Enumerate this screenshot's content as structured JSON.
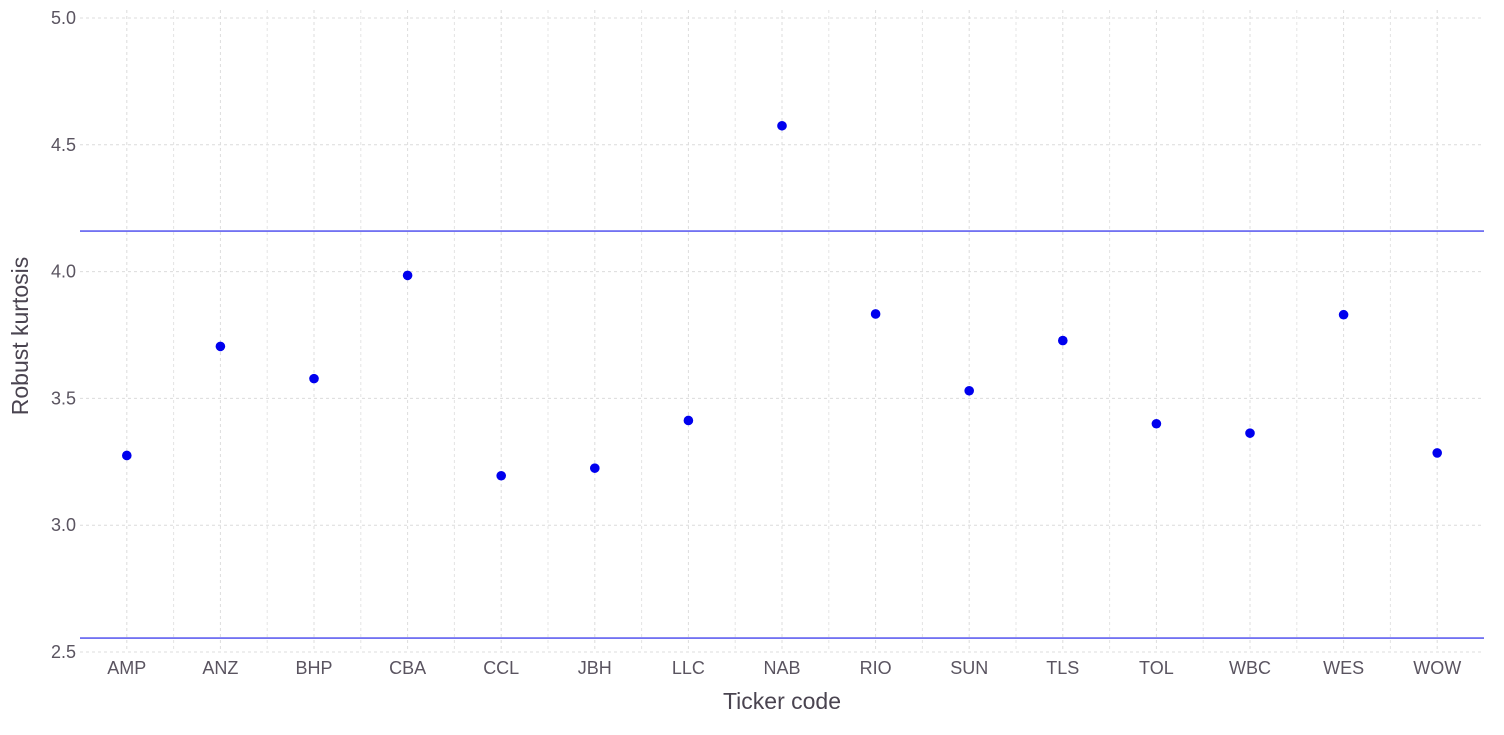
{
  "chart_data": {
    "type": "scatter",
    "title": "",
    "xlabel": "Ticker code",
    "ylabel": "Robust kurtosis",
    "categories": [
      "AMP",
      "ANZ",
      "BHP",
      "CBA",
      "CCL",
      "JBH",
      "LLC",
      "NAB",
      "RIO",
      "SUN",
      "TLS",
      "TOL",
      "WBC",
      "WES",
      "WOW"
    ],
    "values": [
      3.275,
      3.705,
      3.578,
      3.985,
      3.195,
      3.225,
      3.413,
      4.575,
      3.833,
      3.53,
      3.728,
      3.4,
      3.363,
      3.83,
      3.285
    ],
    "ylim": [
      2.5,
      5.0
    ],
    "yticks": [
      "2.5",
      "3.0",
      "3.5",
      "4.0",
      "4.5",
      "5.0"
    ],
    "reference_lines": [
      4.16,
      2.555
    ],
    "grid": true,
    "point_color": "#0000ee",
    "reference_line_color": "#4444ee"
  }
}
